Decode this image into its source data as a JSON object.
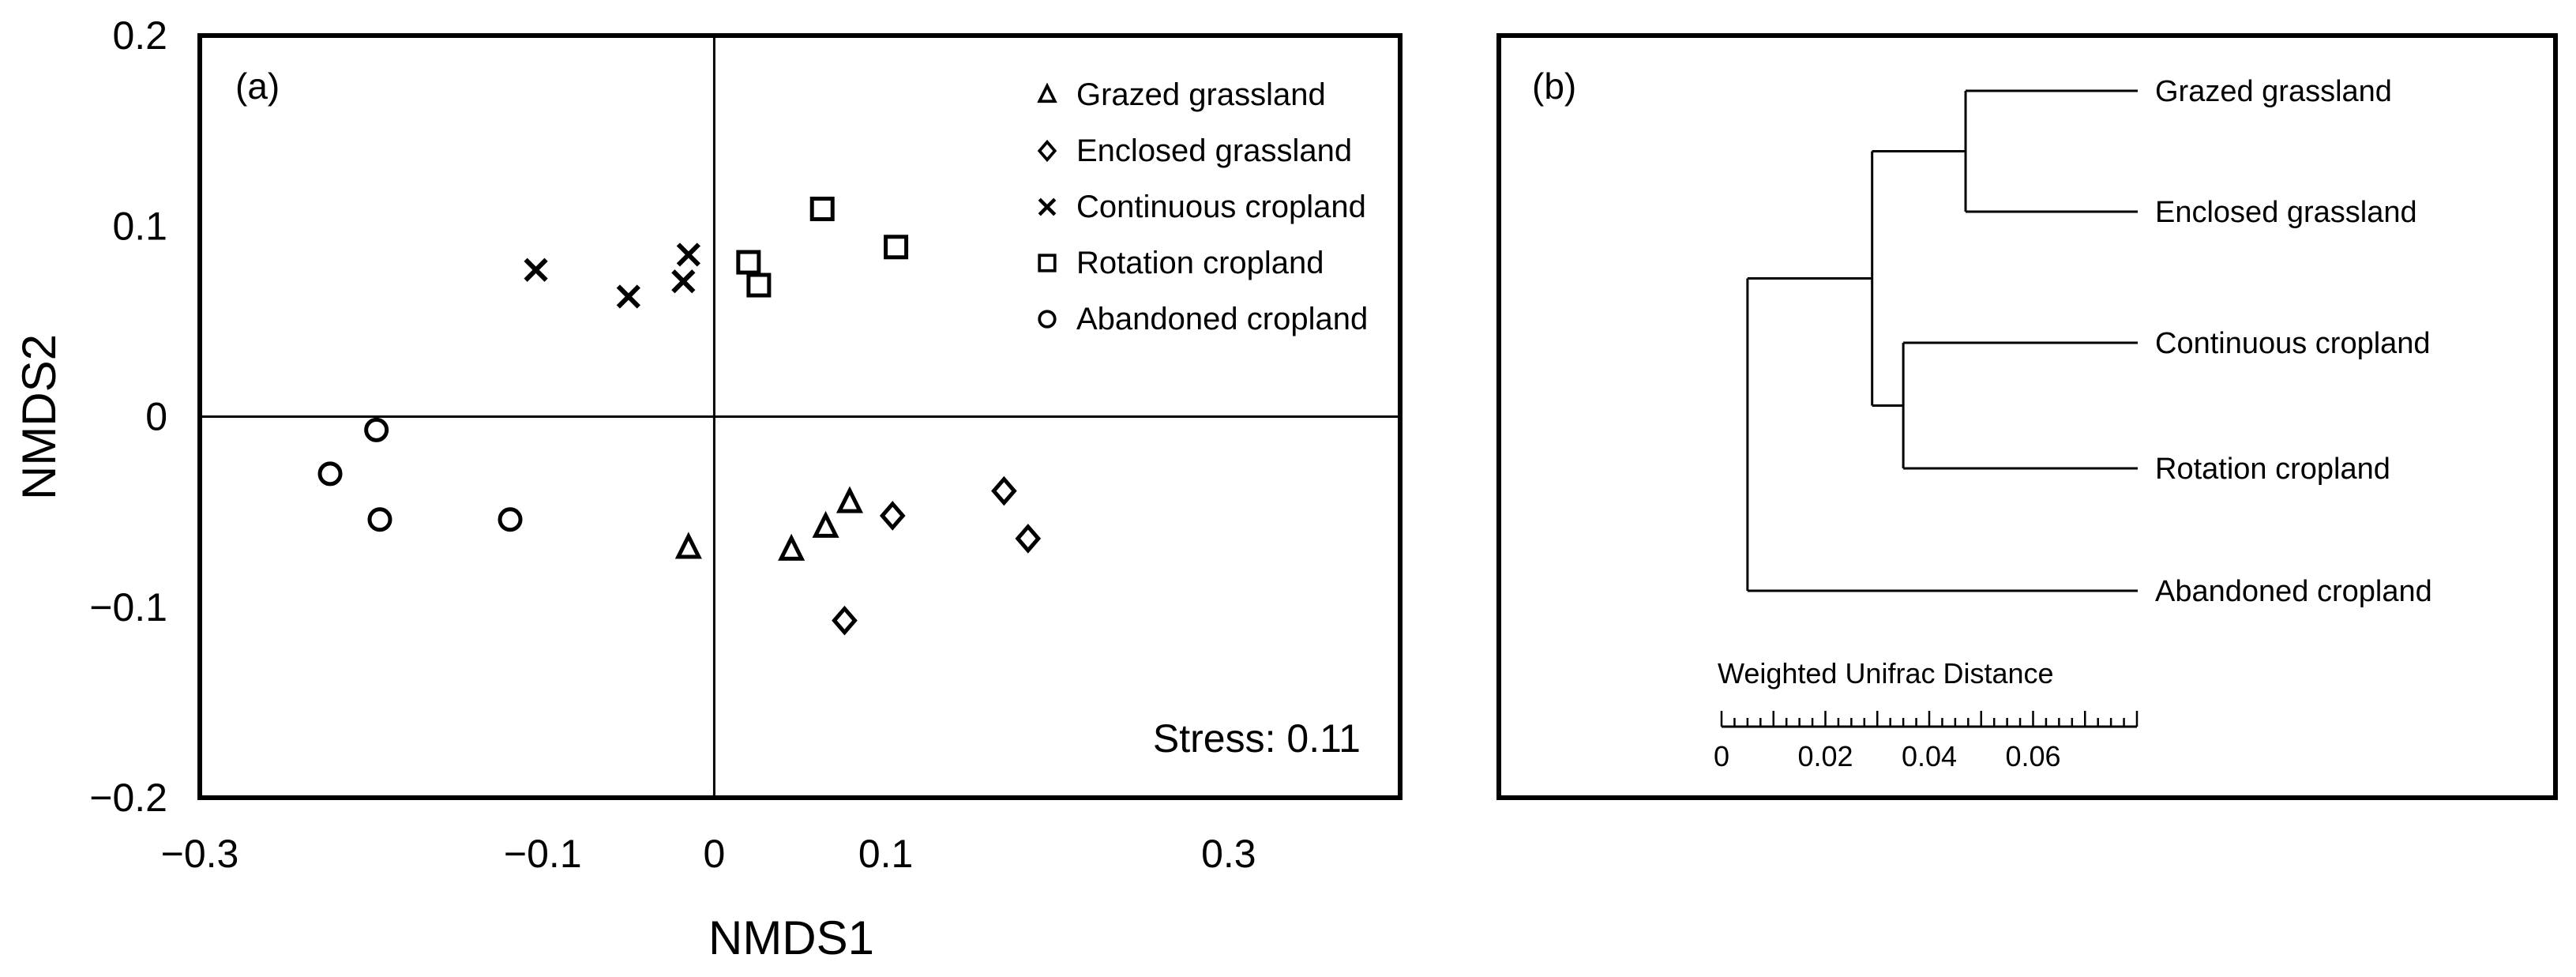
{
  "chart_data": [
    {
      "panel": "(a)",
      "type": "scatter",
      "xlabel": "NMDS1",
      "ylabel": "NMDS2",
      "xlim": [
        -0.3,
        0.4
      ],
      "ylim": [
        -0.2,
        0.2
      ],
      "xticks": [
        -0.3,
        -0.1,
        0,
        0.1,
        0.3
      ],
      "xtick_labels": [
        "−0.3",
        "−0.1",
        "0",
        "0.1",
        "0.3"
      ],
      "yticks": [
        0.2,
        0.1,
        0,
        -0.1,
        -0.2
      ],
      "ytick_labels": [
        "0.2",
        "0.1",
        "0",
        "−0.1",
        "−0.2"
      ],
      "grid": false,
      "reference_lines": {
        "x": 0,
        "y": 0
      },
      "annotation": "Stress: 0.11",
      "legend_position": "top-right",
      "series": [
        {
          "name": "Grazed grassland",
          "marker": "triangle",
          "points": [
            [
              -0.015,
              -0.069
            ],
            [
              0.045,
              -0.07
            ],
            [
              0.065,
              -0.058
            ],
            [
              0.079,
              -0.045
            ]
          ]
        },
        {
          "name": "Enclosed grassland",
          "marker": "diamond",
          "points": [
            [
              0.076,
              -0.107
            ],
            [
              0.104,
              -0.052
            ],
            [
              0.169,
              -0.039
            ],
            [
              0.183,
              -0.064
            ]
          ]
        },
        {
          "name": "Continuous cropland",
          "marker": "cross",
          "points": [
            [
              -0.104,
              0.077
            ],
            [
              -0.05,
              0.063
            ],
            [
              -0.018,
              0.071
            ],
            [
              -0.015,
              0.085
            ]
          ]
        },
        {
          "name": "Rotation cropland",
          "marker": "square",
          "points": [
            [
              0.02,
              0.081
            ],
            [
              0.026,
              0.069
            ],
            [
              0.063,
              0.109
            ],
            [
              0.106,
              0.089
            ]
          ]
        },
        {
          "name": "Abandoned cropland",
          "marker": "circle",
          "points": [
            [
              -0.224,
              -0.03
            ],
            [
              -0.197,
              -0.007
            ],
            [
              -0.195,
              -0.054
            ],
            [
              -0.119,
              -0.054
            ]
          ]
        }
      ]
    },
    {
      "panel": "(b)",
      "type": "dendrogram",
      "axis_label": "Weighted Unifrac Distance",
      "scale_range": [
        0,
        0.08
      ],
      "scale_tick_labels": [
        "0",
        "0.02",
        "0.04",
        "0.06"
      ],
      "scale_tick_values": [
        0,
        0.02,
        0.04,
        0.06
      ],
      "leaves": [
        "Grazed grassland",
        "Enclosed grassland",
        "Continuous cropland",
        "Rotation cropland",
        "Abandoned cropland"
      ],
      "merges": [
        {
          "join": [
            "Grazed grassland",
            "Enclosed grassland"
          ],
          "height": 0.047
        },
        {
          "join": [
            "Continuous cropland",
            "Rotation cropland"
          ],
          "height": 0.035
        },
        {
          "join": [
            "Grazed grassland + Enclosed grassland",
            "Continuous cropland + Rotation cropland"
          ],
          "height": 0.029
        },
        {
          "join": [
            "All grassland + cropland",
            "Abandoned cropland"
          ],
          "height": 0.005
        }
      ]
    }
  ]
}
